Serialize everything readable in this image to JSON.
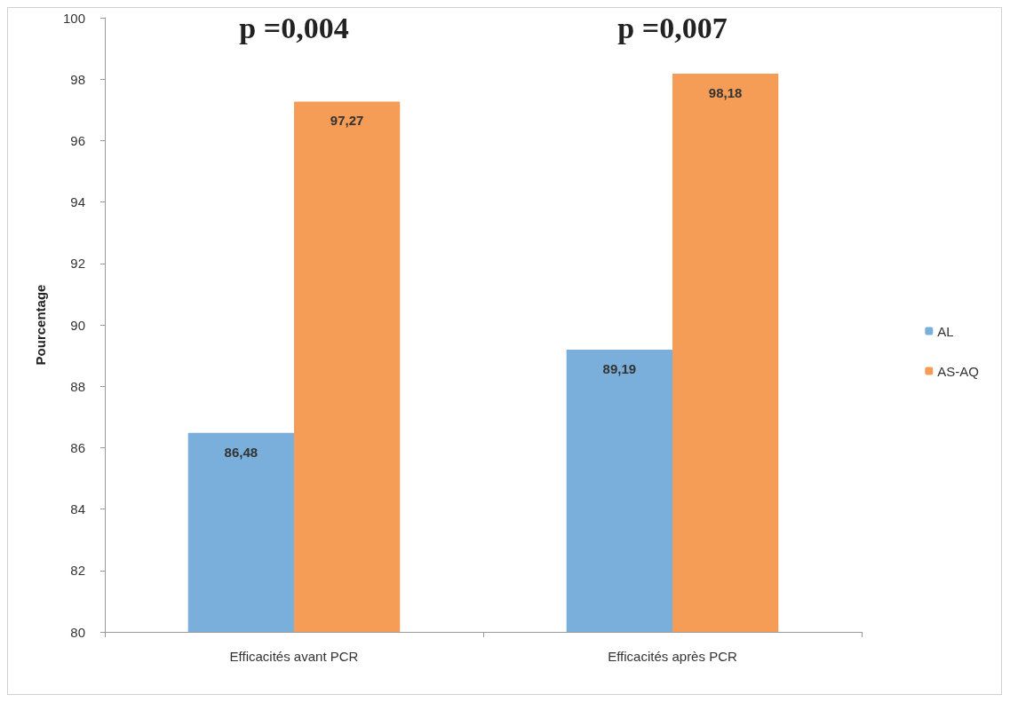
{
  "chart_data": {
    "type": "bar",
    "ylabel": "Pourcentage",
    "categories": [
      "Efficacités avant PCR",
      "Efficacités après PCR"
    ],
    "series": [
      {
        "name": "AL",
        "color": "#7aafdb",
        "values": [
          86.48,
          89.19
        ],
        "value_labels": [
          "86,48",
          "89,19"
        ]
      },
      {
        "name": "AS-AQ",
        "color": "#f59d56",
        "values": [
          97.27,
          98.18
        ],
        "value_labels": [
          "97,27",
          "98,18"
        ]
      }
    ],
    "ylim": [
      80,
      100
    ],
    "yticks": [
      80,
      82,
      84,
      86,
      88,
      90,
      92,
      94,
      96,
      98,
      100
    ],
    "grid": false,
    "legend": "right",
    "annotations": [
      "p =0,004",
      "p =0,007"
    ]
  }
}
